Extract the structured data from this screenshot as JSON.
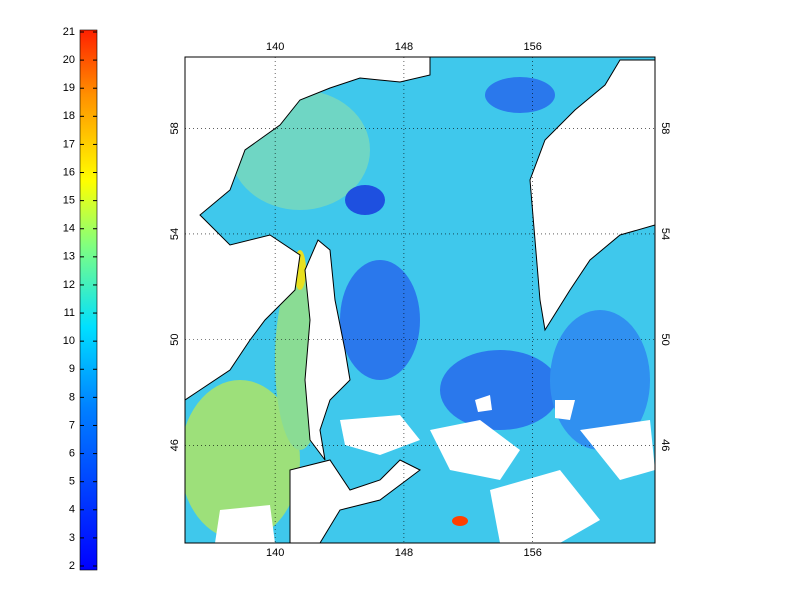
{
  "colorbar": {
    "range": [
      2,
      21
    ],
    "ticks": [
      2,
      3,
      4,
      5,
      6,
      7,
      8,
      9,
      10,
      11,
      12,
      13,
      14,
      15,
      16,
      17,
      18,
      19,
      20,
      21
    ]
  },
  "map": {
    "lon_range": [
      134.4,
      163.6
    ],
    "lat_range": [
      42.3,
      60.7
    ],
    "lon_ticks": [
      140,
      148,
      156
    ],
    "lat_ticks": [
      46,
      50,
      54,
      58
    ]
  }
}
